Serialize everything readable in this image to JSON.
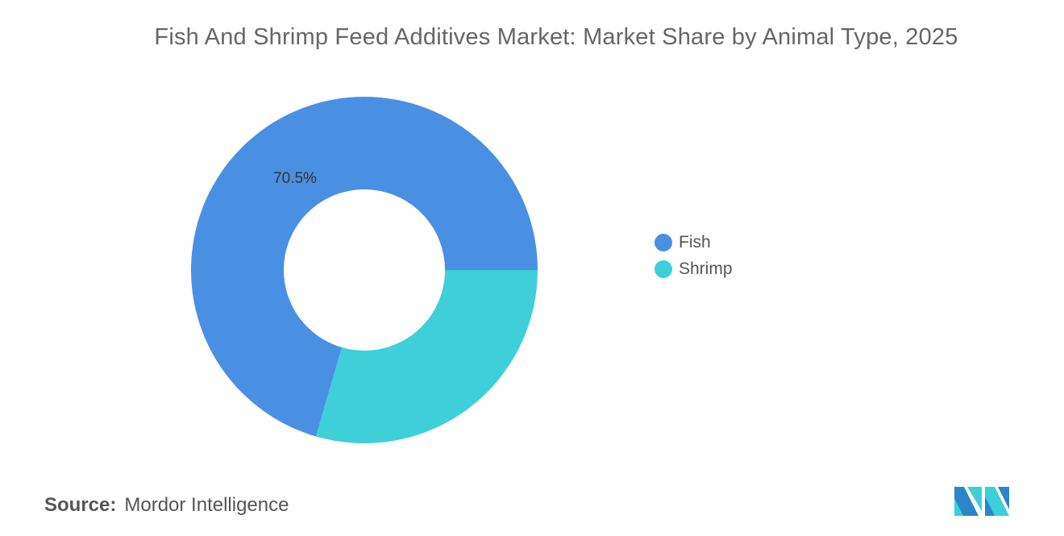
{
  "chart_data": {
    "type": "pie",
    "donut": true,
    "title": "Fish And Shrimp Feed Additives Market: Market Share by Animal Type, 2025",
    "categories": [
      "Fish",
      "Shrimp"
    ],
    "values": [
      70.5,
      29.5
    ],
    "data_labels": [
      "70.5%",
      ""
    ],
    "colors": [
      "#4a90e2",
      "#3ecfd9"
    ],
    "legend_placement": "right"
  },
  "source": {
    "label": "Source:",
    "value": "Mordor Intelligence"
  },
  "logo": {
    "name": "mordor-intelligence-logo",
    "colors": [
      "#2a86c8",
      "#3ecfd9"
    ]
  }
}
